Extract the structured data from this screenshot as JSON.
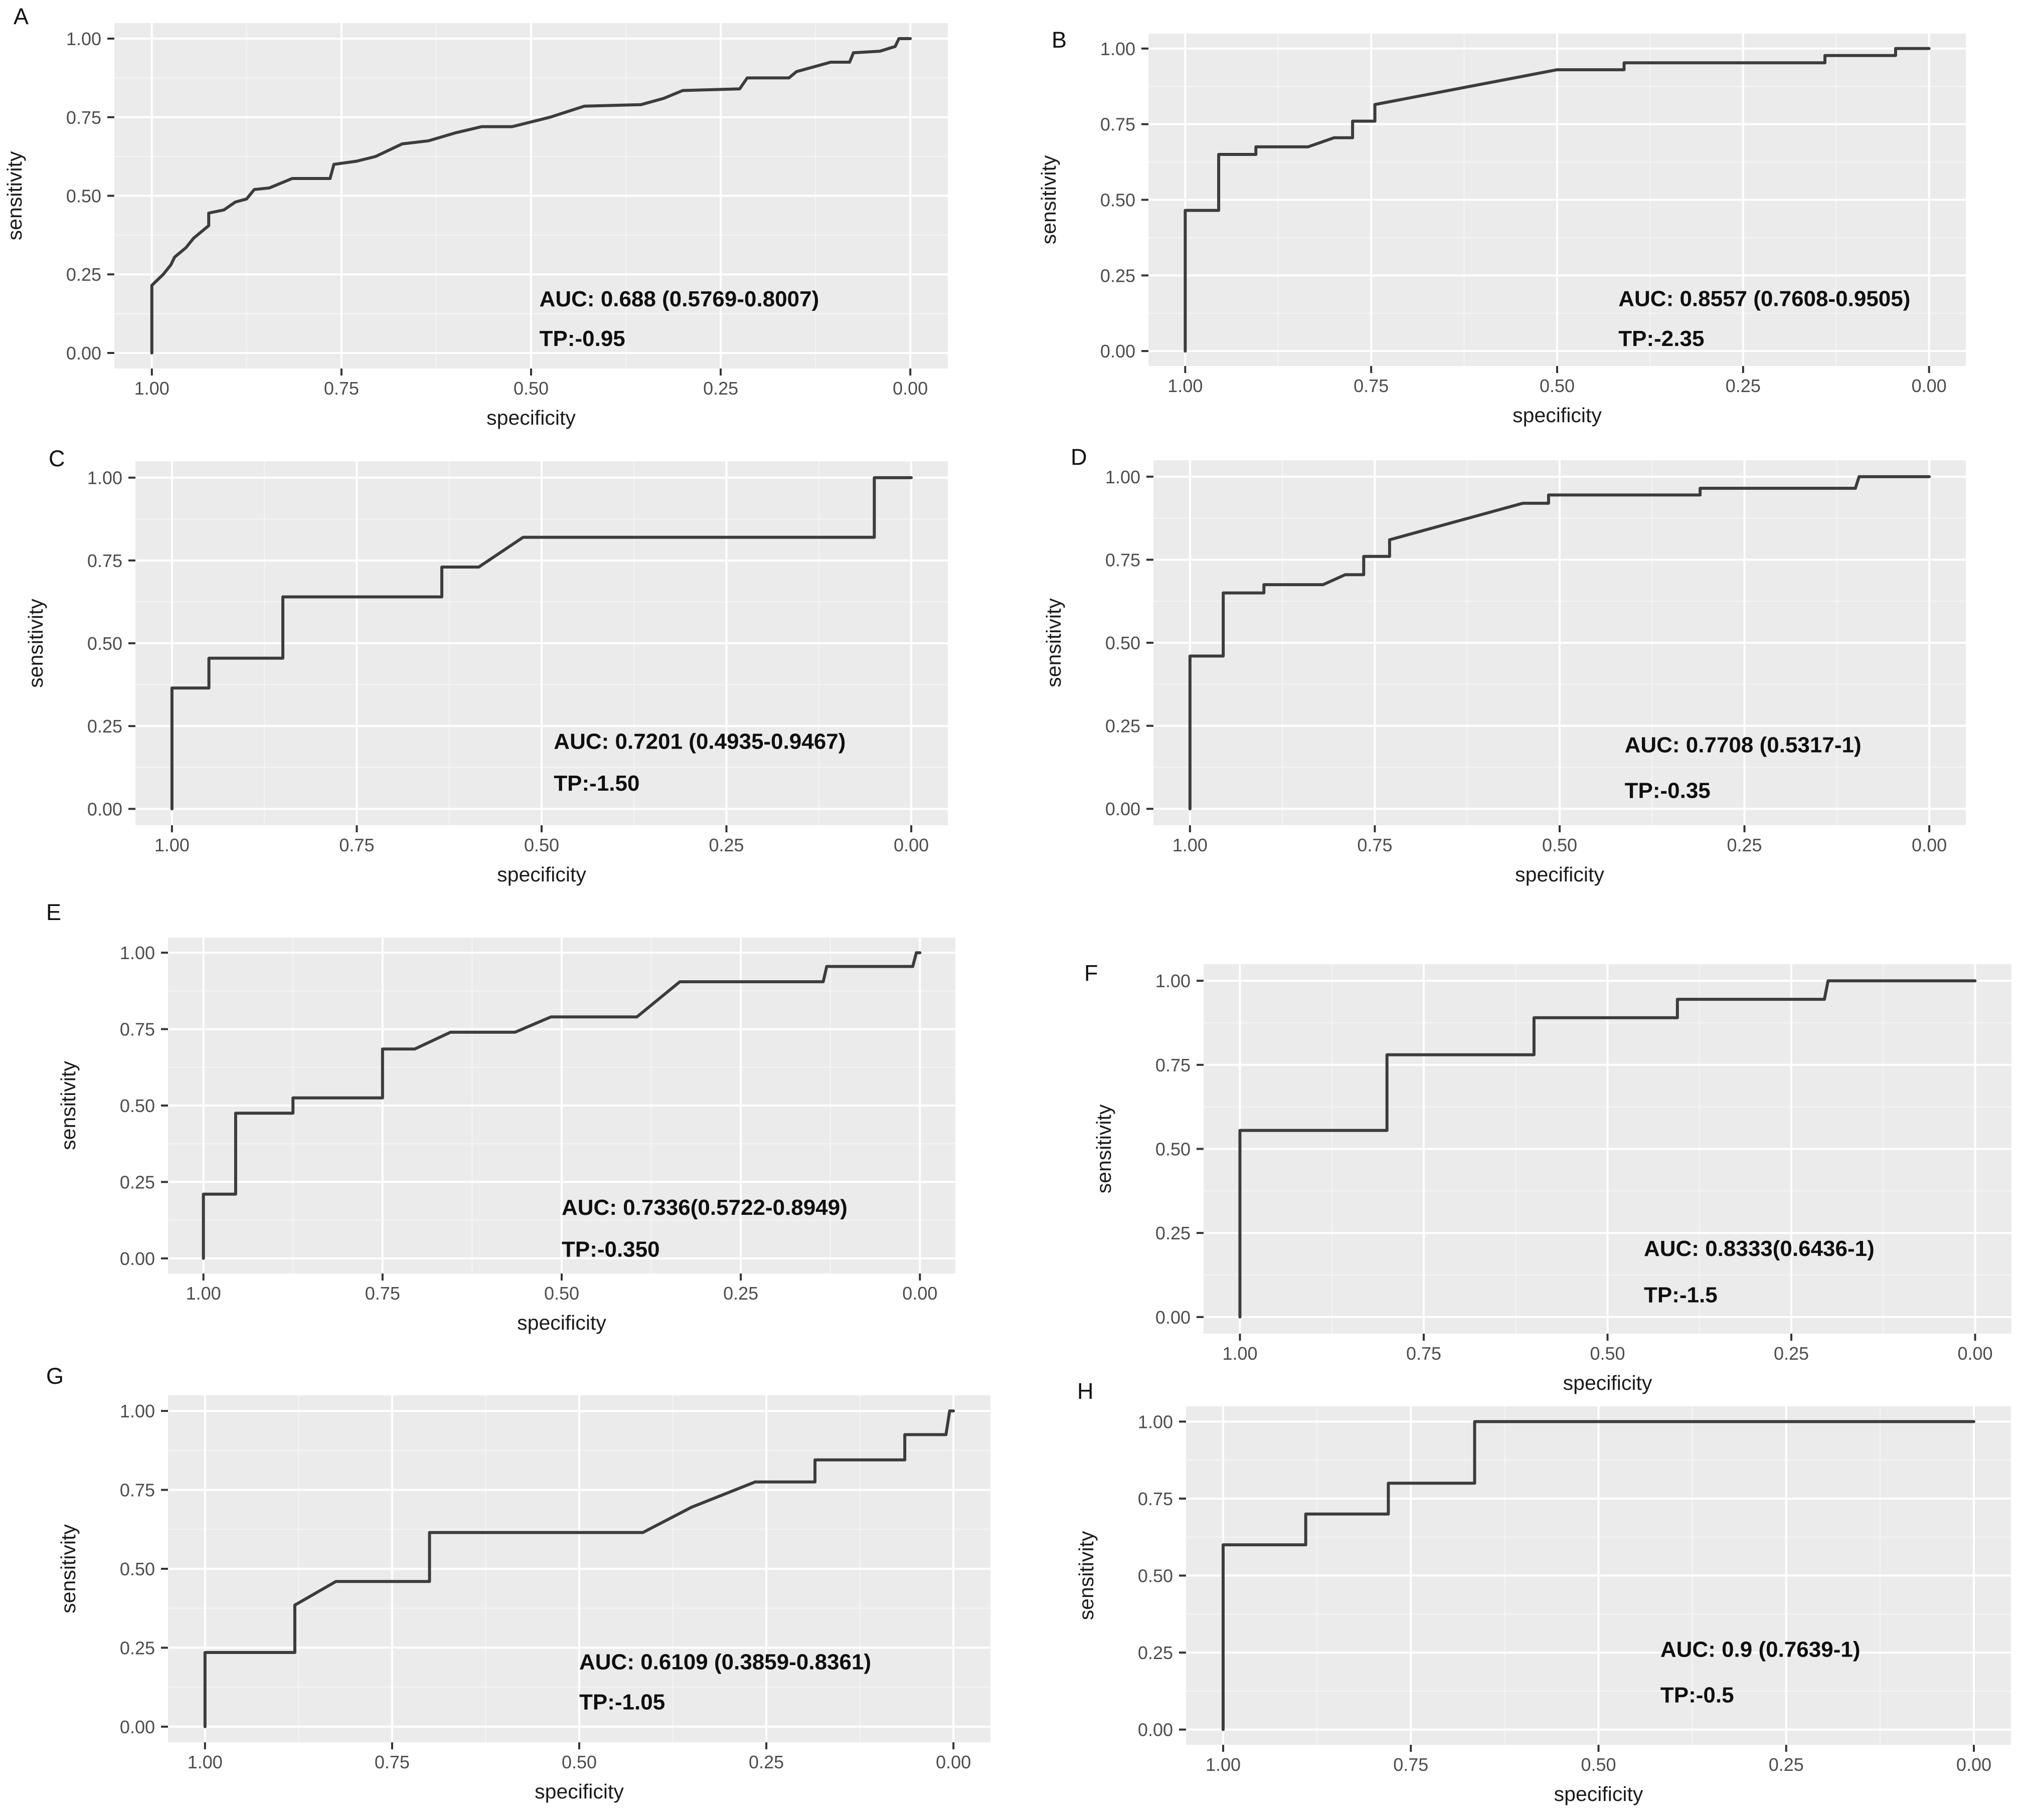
{
  "figure": {
    "background": "#ffffff",
    "panel_background": "#ebebeb",
    "grid_major_color": "#ffffff",
    "grid_minor_color": "#f4f4f4",
    "curve_color": "#3c3c3c",
    "tick_color": "#333333",
    "tick_label_color": "#4d4d4d",
    "xlabel": "specificity",
    "ylabel": "sensitivity",
    "x_tick_labels": [
      "1.00",
      "0.75",
      "0.50",
      "0.25",
      "0.00"
    ],
    "x_tick_values": [
      1,
      0.75,
      0.5,
      0.25,
      0
    ],
    "y_tick_labels": [
      "0.00",
      "0.25",
      "0.50",
      "0.75",
      "1.00"
    ],
    "y_tick_values": [
      0,
      0.25,
      0.5,
      0.75,
      1
    ],
    "grid_major_values": [
      0,
      0.25,
      0.5,
      0.75,
      1
    ],
    "grid_minor_values": [
      0.125,
      0.375,
      0.625,
      0.875
    ]
  },
  "chart_data": [
    {
      "type": "line",
      "panel_label": "A",
      "xlabel": "specificity",
      "ylabel": "sensitivity",
      "xlim": [
        1,
        0
      ],
      "ylim": [
        0,
        1
      ],
      "x_reversed": true,
      "grid": true,
      "auc_text": "AUC: 0.688 (0.5769-0.8007)",
      "tp_text": "TP:-0.95",
      "points": [
        [
          1,
          0
        ],
        [
          1,
          0.215
        ],
        [
          0.985,
          0.25
        ],
        [
          0.975,
          0.28
        ],
        [
          0.97,
          0.305
        ],
        [
          0.955,
          0.335
        ],
        [
          0.945,
          0.365
        ],
        [
          0.925,
          0.405
        ],
        [
          0.925,
          0.445
        ],
        [
          0.905,
          0.455
        ],
        [
          0.89,
          0.48
        ],
        [
          0.875,
          0.49
        ],
        [
          0.865,
          0.52
        ],
        [
          0.845,
          0.525
        ],
        [
          0.815,
          0.555
        ],
        [
          0.765,
          0.555
        ],
        [
          0.76,
          0.6
        ],
        [
          0.73,
          0.61
        ],
        [
          0.705,
          0.625
        ],
        [
          0.67,
          0.665
        ],
        [
          0.635,
          0.675
        ],
        [
          0.6,
          0.7
        ],
        [
          0.565,
          0.72
        ],
        [
          0.525,
          0.72
        ],
        [
          0.475,
          0.75
        ],
        [
          0.43,
          0.785
        ],
        [
          0.355,
          0.79
        ],
        [
          0.325,
          0.81
        ],
        [
          0.3,
          0.835
        ],
        [
          0.225,
          0.84
        ],
        [
          0.215,
          0.875
        ],
        [
          0.16,
          0.875
        ],
        [
          0.15,
          0.895
        ],
        [
          0.105,
          0.925
        ],
        [
          0.08,
          0.925
        ],
        [
          0.075,
          0.955
        ],
        [
          0.04,
          0.96
        ],
        [
          0.02,
          0.975
        ],
        [
          0.015,
          1
        ],
        [
          0,
          1
        ]
      ]
    },
    {
      "type": "line",
      "panel_label": "B",
      "xlabel": "specificity",
      "ylabel": "sensitivity",
      "xlim": [
        1,
        0
      ],
      "ylim": [
        0,
        1
      ],
      "x_reversed": true,
      "grid": true,
      "auc_text": "AUC: 0.8557 (0.7608-0.9505)",
      "tp_text": "TP:-2.35",
      "points": [
        [
          1,
          0
        ],
        [
          1,
          0.465
        ],
        [
          0.955,
          0.465
        ],
        [
          0.955,
          0.65
        ],
        [
          0.905,
          0.65
        ],
        [
          0.905,
          0.675
        ],
        [
          0.835,
          0.675
        ],
        [
          0.8,
          0.705
        ],
        [
          0.775,
          0.705
        ],
        [
          0.775,
          0.76
        ],
        [
          0.745,
          0.76
        ],
        [
          0.745,
          0.815
        ],
        [
          0.5,
          0.93
        ],
        [
          0.41,
          0.93
        ],
        [
          0.41,
          0.953
        ],
        [
          0.14,
          0.953
        ],
        [
          0.14,
          0.977
        ],
        [
          0.045,
          0.977
        ],
        [
          0.045,
          1
        ],
        [
          0,
          1
        ]
      ]
    },
    {
      "type": "line",
      "panel_label": "C",
      "xlabel": "specificity",
      "ylabel": "sensitivity",
      "xlim": [
        1,
        0
      ],
      "ylim": [
        0,
        1
      ],
      "x_reversed": true,
      "grid": true,
      "auc_text": "AUC: 0.7201 (0.4935-0.9467)",
      "tp_text": "TP:-1.50",
      "points": [
        [
          1,
          0
        ],
        [
          1,
          0.365
        ],
        [
          0.95,
          0.365
        ],
        [
          0.95,
          0.455
        ],
        [
          0.85,
          0.455
        ],
        [
          0.85,
          0.64
        ],
        [
          0.635,
          0.64
        ],
        [
          0.635,
          0.73
        ],
        [
          0.585,
          0.73
        ],
        [
          0.525,
          0.82
        ],
        [
          0.05,
          0.82
        ],
        [
          0.05,
          1
        ],
        [
          0,
          1
        ]
      ]
    },
    {
      "type": "line",
      "panel_label": "D",
      "xlabel": "specificity",
      "ylabel": "sensitivity",
      "xlim": [
        1,
        0
      ],
      "ylim": [
        0,
        1
      ],
      "x_reversed": true,
      "grid": true,
      "auc_text": "AUC: 0.7708 (0.5317-1)",
      "tp_text": "TP:-0.35",
      "points": [
        [
          1,
          0
        ],
        [
          1,
          0.46
        ],
        [
          0.955,
          0.46
        ],
        [
          0.955,
          0.65
        ],
        [
          0.9,
          0.65
        ],
        [
          0.9,
          0.675
        ],
        [
          0.82,
          0.675
        ],
        [
          0.79,
          0.705
        ],
        [
          0.765,
          0.705
        ],
        [
          0.765,
          0.76
        ],
        [
          0.73,
          0.76
        ],
        [
          0.73,
          0.81
        ],
        [
          0.55,
          0.92
        ],
        [
          0.515,
          0.92
        ],
        [
          0.515,
          0.945
        ],
        [
          0.31,
          0.945
        ],
        [
          0.31,
          0.965
        ],
        [
          0.1,
          0.965
        ],
        [
          0.095,
          1
        ],
        [
          0,
          1
        ]
      ]
    },
    {
      "type": "line",
      "panel_label": "E",
      "xlabel": "specificity",
      "ylabel": "sensitivity",
      "xlim": [
        1,
        0
      ],
      "ylim": [
        0,
        1
      ],
      "x_reversed": true,
      "grid": true,
      "auc_text": "AUC: 0.7336(0.5722-0.8949)",
      "tp_text": "TP:-0.350",
      "points": [
        [
          1,
          0
        ],
        [
          1,
          0.21
        ],
        [
          0.955,
          0.21
        ],
        [
          0.955,
          0.475
        ],
        [
          0.875,
          0.475
        ],
        [
          0.875,
          0.525
        ],
        [
          0.75,
          0.525
        ],
        [
          0.75,
          0.685
        ],
        [
          0.705,
          0.685
        ],
        [
          0.655,
          0.74
        ],
        [
          0.565,
          0.74
        ],
        [
          0.515,
          0.79
        ],
        [
          0.395,
          0.79
        ],
        [
          0.335,
          0.905
        ],
        [
          0.135,
          0.905
        ],
        [
          0.13,
          0.955
        ],
        [
          0.01,
          0.955
        ],
        [
          0.005,
          1
        ],
        [
          0,
          1
        ]
      ]
    },
    {
      "type": "line",
      "panel_label": "F",
      "xlabel": "specificity",
      "ylabel": "sensitivity",
      "xlim": [
        1,
        0
      ],
      "ylim": [
        0,
        1
      ],
      "x_reversed": true,
      "grid": true,
      "auc_text": "AUC: 0.8333(0.6436-1)",
      "tp_text": "TP:-1.5",
      "points": [
        [
          1,
          0
        ],
        [
          1,
          0.555
        ],
        [
          0.8,
          0.555
        ],
        [
          0.8,
          0.78
        ],
        [
          0.6,
          0.78
        ],
        [
          0.6,
          0.89
        ],
        [
          0.405,
          0.89
        ],
        [
          0.405,
          0.945
        ],
        [
          0.205,
          0.945
        ],
        [
          0.2,
          1
        ],
        [
          0,
          1
        ]
      ]
    },
    {
      "type": "line",
      "panel_label": "G",
      "xlabel": "specificity",
      "ylabel": "sensitivity",
      "xlim": [
        1,
        0
      ],
      "ylim": [
        0,
        1
      ],
      "x_reversed": true,
      "grid": true,
      "auc_text": "AUC: 0.6109 (0.3859-0.8361)",
      "tp_text": "TP:-1.05",
      "points": [
        [
          1,
          0
        ],
        [
          1,
          0.235
        ],
        [
          0.88,
          0.235
        ],
        [
          0.88,
          0.385
        ],
        [
          0.825,
          0.46
        ],
        [
          0.7,
          0.46
        ],
        [
          0.7,
          0.615
        ],
        [
          0.415,
          0.615
        ],
        [
          0.35,
          0.695
        ],
        [
          0.265,
          0.775
        ],
        [
          0.185,
          0.775
        ],
        [
          0.185,
          0.845
        ],
        [
          0.065,
          0.845
        ],
        [
          0.065,
          0.925
        ],
        [
          0.01,
          0.925
        ],
        [
          0.005,
          1
        ],
        [
          0,
          1
        ]
      ]
    },
    {
      "type": "line",
      "panel_label": "H",
      "xlabel": "specificity",
      "ylabel": "sensitivity",
      "xlim": [
        1,
        0
      ],
      "ylim": [
        0,
        1
      ],
      "x_reversed": true,
      "grid": true,
      "auc_text": "AUC: 0.9 (0.7639-1)",
      "tp_text": "TP:-0.5",
      "points": [
        [
          1,
          0
        ],
        [
          1,
          0.6
        ],
        [
          0.89,
          0.6
        ],
        [
          0.89,
          0.7
        ],
        [
          0.78,
          0.7
        ],
        [
          0.78,
          0.8
        ],
        [
          0.665,
          0.8
        ],
        [
          0.665,
          1
        ],
        [
          0,
          1
        ]
      ]
    }
  ]
}
